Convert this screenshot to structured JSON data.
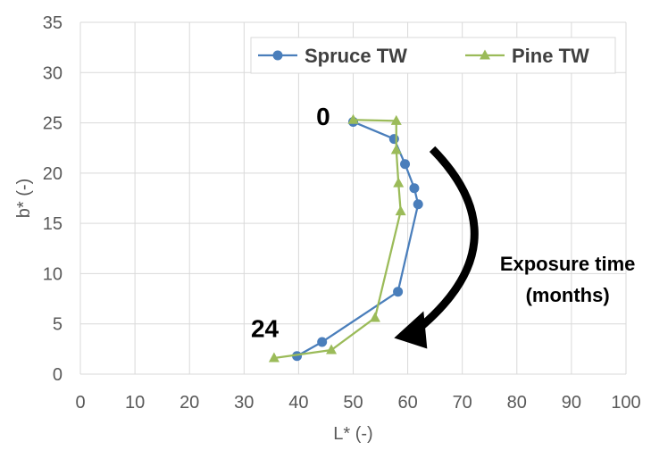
{
  "chart_data": {
    "type": "line",
    "title": "",
    "xlabel": "L* (-)",
    "ylabel": "b* (-)",
    "xlim": [
      0,
      100
    ],
    "ylim": [
      0,
      35
    ],
    "x_ticks": [
      0,
      10,
      20,
      30,
      40,
      50,
      60,
      70,
      80,
      90,
      100
    ],
    "y_ticks": [
      0,
      5,
      10,
      15,
      20,
      25,
      30,
      35
    ],
    "x_tick_labels": [
      "0",
      "10",
      "20",
      "30",
      "40",
      "50",
      "60",
      "70",
      "80",
      "90",
      "100"
    ],
    "y_tick_labels": [
      "0",
      "5",
      "10",
      "15",
      "20",
      "25",
      "30",
      "35"
    ],
    "grid": true,
    "legend_position": "top-right",
    "series": [
      {
        "name": "Spruce TW",
        "color": "#4a7ebb",
        "marker": "circle",
        "x": [
          50.0,
          57.5,
          59.5,
          61.2,
          61.9,
          58.2,
          44.3,
          39.7
        ],
        "y": [
          25.1,
          23.4,
          20.9,
          18.5,
          16.9,
          8.2,
          3.2,
          1.8
        ]
      },
      {
        "name": "Pine TW",
        "color": "#9bbb59",
        "marker": "triangle",
        "x": [
          50.0,
          57.9,
          57.9,
          58.3,
          58.7,
          54.0,
          46.0,
          35.5
        ],
        "y": [
          25.3,
          25.2,
          22.3,
          19.0,
          16.2,
          5.6,
          2.4,
          1.6
        ]
      }
    ],
    "annotations": [
      {
        "text": "0",
        "x": 44.5,
        "y": 24.8
      },
      {
        "text": "24",
        "x": 33.8,
        "y": 3.7
      },
      {
        "text": "Exposure time",
        "x": 89.3,
        "y": 10.3
      },
      {
        "text": "(months)",
        "x": 89.3,
        "y": 7.2
      }
    ],
    "arrow": {
      "from": [
        64.5,
        22.4
      ],
      "to": [
        57.5,
        3.6
      ],
      "color": "#000000"
    }
  }
}
